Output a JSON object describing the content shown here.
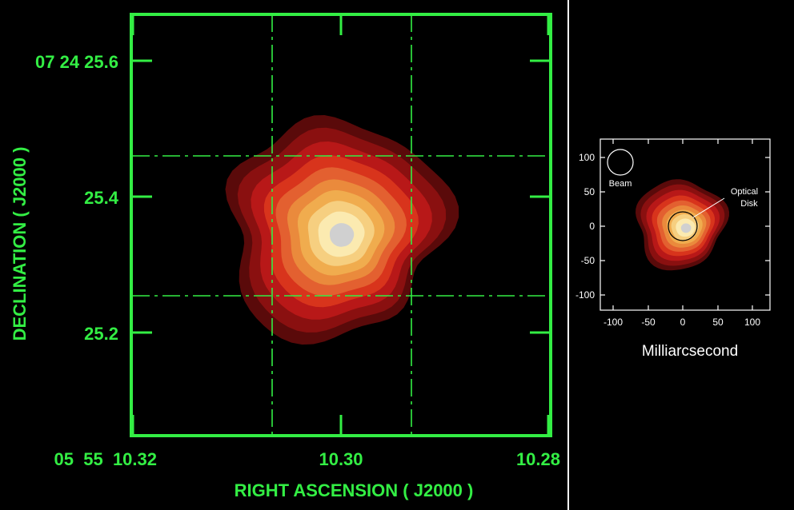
{
  "left_panel": {
    "xlabel": "RIGHT ASCENSION ( J2000 )",
    "ylabel": "DECLINATION ( J2000 )",
    "x_ticks": [
      "05  55  10.32",
      "10.30",
      "10.28"
    ],
    "y_ticks": [
      "07  24  25.6",
      "25.4",
      "25.2"
    ],
    "axis_color": "#33ee44"
  },
  "right_panel": {
    "xlabel": "Milliarcsecond",
    "x_ticks": [
      "-100",
      "-50",
      "0",
      "50",
      "100"
    ],
    "y_ticks": [
      "100",
      "50",
      "0",
      "-50",
      "-100"
    ],
    "beam_label": "Beam",
    "disk_label_line1": "Optical",
    "disk_label_line2": "Disk",
    "axis_color": "#ffffff"
  },
  "colors": {
    "background": "#000000",
    "contours": [
      "#5a0a0a",
      "#8a1010",
      "#b81818",
      "#d8341c",
      "#e36030",
      "#ea8a3c",
      "#f0ac4e",
      "#f6cf80",
      "#fbeab0",
      "#d0d0d0"
    ]
  }
}
